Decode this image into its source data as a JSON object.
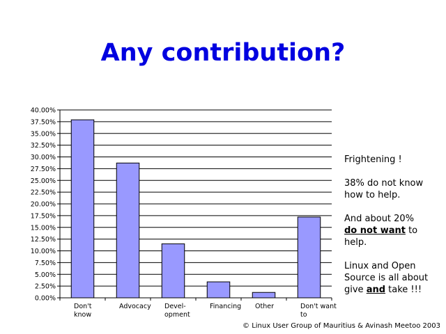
{
  "slide": {
    "title": "Any contribution?",
    "notes": {
      "line1": "Frightening !",
      "line2": "38% do not know how to help.",
      "line3_pre": "And about 20%",
      "line3_bold": "do not want",
      "line3_post": " to help.",
      "line4_pre": "Linux and Open Source is all about give ",
      "line4_bold": "and",
      "line4_post": " take !!!"
    },
    "copyright": "© Linux User Group of Mauritius & Avinash Meetoo 2003"
  },
  "chart_data": {
    "type": "bar",
    "categories": [
      [
        "Don't",
        "know"
      ],
      [
        "Advocacy"
      ],
      [
        "Devel-",
        "opment"
      ],
      [
        "Financing"
      ],
      [
        "Other"
      ],
      [
        "Don't want",
        "to"
      ]
    ],
    "values": [
      37.9,
      28.7,
      11.5,
      3.4,
      1.15,
      17.2
    ],
    "ylim": [
      0,
      40
    ],
    "yticks": [
      "0.00%",
      "2.50%",
      "5.00%",
      "7.50%",
      "10.00%",
      "12.50%",
      "15.00%",
      "17.50%",
      "20.00%",
      "22.50%",
      "25.00%",
      "27.50%",
      "30.00%",
      "32.50%",
      "35.00%",
      "37.50%",
      "40.00%"
    ],
    "bar_color": "#9999ff",
    "grid": true,
    "title": "",
    "xlabel": "",
    "ylabel": ""
  }
}
